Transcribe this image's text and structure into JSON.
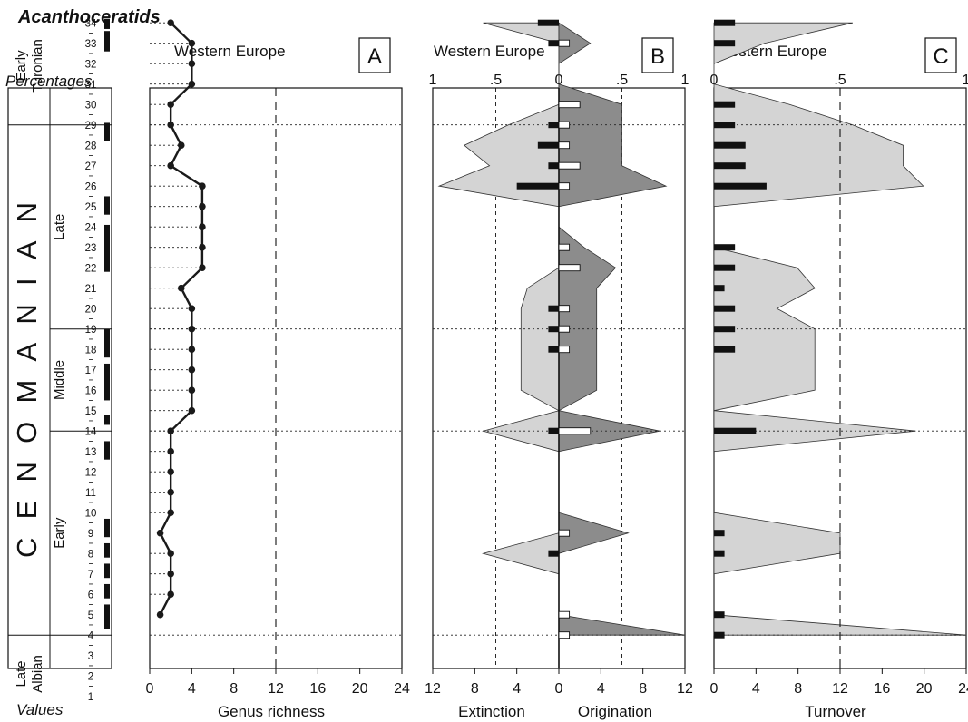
{
  "title": "Acanthoceratids",
  "row_labels": {
    "percentages": "Percentages",
    "values": "Values"
  },
  "colors": {
    "light_fill": "#d4d4d4",
    "dark_fill": "#8c8c8c",
    "line": "#1a1a1a"
  },
  "stratigraphy": {
    "stage_main": "CENOMANIAN",
    "substages": [
      {
        "label": "Early Turonian",
        "from": 29,
        "to": 34.8
      },
      {
        "label": "Late",
        "from": 19,
        "to": 29
      },
      {
        "label": "Middle",
        "from": 14,
        "to": 19
      },
      {
        "label": "Early",
        "from": 4,
        "to": 14
      },
      {
        "label": "Late Albian",
        "from": 0.2,
        "to": 4
      }
    ],
    "stage_numbers": [
      "1",
      "2",
      "3",
      "4",
      "5",
      "6",
      "7",
      "8",
      "9",
      "10",
      "11",
      "12",
      "13",
      "14",
      "15",
      "16",
      "17",
      "18",
      "19",
      "20",
      "21",
      "22",
      "23",
      "24",
      "25",
      "26",
      "27",
      "28",
      "29",
      "30",
      "31",
      "32",
      "33",
      "34"
    ],
    "boundary_levels": [
      4,
      14,
      19,
      29
    ]
  },
  "chart_data": [
    {
      "id": "A",
      "type": "line",
      "panel_label": "A",
      "region": "Western Europe",
      "xlabel": "Genus richness",
      "xticks": [
        "0",
        "4",
        "8",
        "12",
        "16",
        "20",
        "24"
      ],
      "xlim": [
        0,
        24
      ],
      "reference_line": 12,
      "series": [
        {
          "levels": [
            5,
            6,
            7,
            8,
            9,
            10,
            11,
            12,
            13,
            14,
            15,
            16,
            17,
            18,
            19,
            20,
            21,
            22,
            23,
            24,
            25,
            26,
            27,
            28,
            29,
            30,
            31,
            32,
            33,
            34
          ],
          "values": [
            1,
            2,
            2,
            2,
            1,
            2,
            2,
            2,
            2,
            2,
            4,
            4,
            4,
            4,
            4,
            4,
            3,
            5,
            5,
            5,
            5,
            5,
            2,
            3,
            2,
            2,
            4,
            4,
            4,
            2
          ]
        }
      ]
    },
    {
      "id": "B",
      "type": "area",
      "panel_label": "B",
      "region": "Western Europe",
      "xlabel_left": "Extinction",
      "xlabel_right": "Origination",
      "xticks": [
        "12",
        "8",
        "4",
        "0",
        "4",
        "8",
        "12"
      ],
      "top_ticks": [
        "1",
        ".5",
        "0",
        ".5",
        "1"
      ],
      "xlim": [
        -12,
        12
      ],
      "reference_lines": [
        -6,
        6
      ],
      "series": [
        {
          "name": "Extinction",
          "levels": [
            4,
            5,
            6,
            7,
            8,
            9,
            10,
            11,
            12,
            13,
            14,
            15,
            16,
            17,
            18,
            19,
            20,
            21,
            22,
            23,
            24,
            25,
            26,
            27,
            28,
            29,
            30,
            31,
            32,
            33,
            34
          ],
          "percent": [
            0,
            0,
            0,
            0,
            0.6,
            0,
            0,
            0,
            0,
            0,
            0.6,
            0,
            0.3,
            0.3,
            0.3,
            0.3,
            0.3,
            0.25,
            0,
            0,
            0,
            0,
            0.95,
            0.55,
            0.75,
            0.4,
            0,
            0,
            0,
            0,
            0.6
          ],
          "values": [
            0,
            0,
            0,
            0,
            1,
            0,
            0,
            0,
            0,
            0,
            1,
            0,
            0,
            0,
            1,
            1,
            1,
            0,
            0,
            0,
            0,
            0,
            4,
            1,
            2,
            1,
            0,
            0,
            0,
            1,
            2
          ]
        },
        {
          "name": "Origination",
          "levels": [
            4,
            5,
            6,
            7,
            8,
            9,
            10,
            11,
            12,
            13,
            14,
            15,
            16,
            17,
            18,
            19,
            20,
            21,
            22,
            23,
            24,
            25,
            26,
            27,
            28,
            29,
            30,
            31,
            32,
            33,
            34
          ],
          "percent": [
            1,
            0,
            0,
            0,
            0,
            0.55,
            0,
            0,
            0,
            0,
            0.8,
            0,
            0.3,
            0.3,
            0.3,
            0.3,
            0.3,
            0.3,
            0.45,
            0.2,
            0,
            0,
            0.85,
            0.5,
            0.5,
            0.5,
            0.5,
            0,
            0,
            0.25,
            0
          ],
          "values": [
            1,
            1,
            0,
            0,
            0,
            1,
            0,
            0,
            0,
            0,
            3,
            0,
            0,
            0,
            1,
            1,
            1,
            0,
            2,
            1,
            0,
            0,
            1,
            2,
            1,
            1,
            2,
            0,
            0,
            1,
            0
          ]
        }
      ]
    },
    {
      "id": "C",
      "type": "area",
      "panel_label": "C",
      "region": "Western Europe",
      "xlabel": "Turnover",
      "xticks": [
        "0",
        "4",
        "8",
        "12",
        "16",
        "20",
        "24"
      ],
      "top_ticks": [
        "0",
        ".5",
        "1"
      ],
      "xlim": [
        0,
        24
      ],
      "reference_line": 12,
      "series": [
        {
          "name": "Turnover",
          "levels": [
            4,
            5,
            6,
            7,
            8,
            9,
            10,
            11,
            12,
            13,
            14,
            15,
            16,
            17,
            18,
            19,
            20,
            21,
            22,
            23,
            24,
            25,
            26,
            27,
            28,
            29,
            30,
            31,
            32,
            33,
            34
          ],
          "percent": [
            1,
            0,
            0,
            0,
            0.5,
            0.5,
            0,
            0,
            0,
            0,
            0.8,
            0,
            0.4,
            0.4,
            0.4,
            0.4,
            0.25,
            0.4,
            0.33,
            0,
            0,
            0,
            0.83,
            0.75,
            0.75,
            0.55,
            0.3,
            0,
            0,
            0.2,
            0.55
          ],
          "values": [
            1,
            1,
            0,
            0,
            1,
            1,
            0,
            0,
            0,
            0,
            4,
            0,
            0,
            0,
            2,
            2,
            2,
            1,
            2,
            2,
            0,
            0,
            5,
            3,
            3,
            2,
            2,
            0,
            0,
            2,
            2
          ]
        }
      ]
    }
  ]
}
